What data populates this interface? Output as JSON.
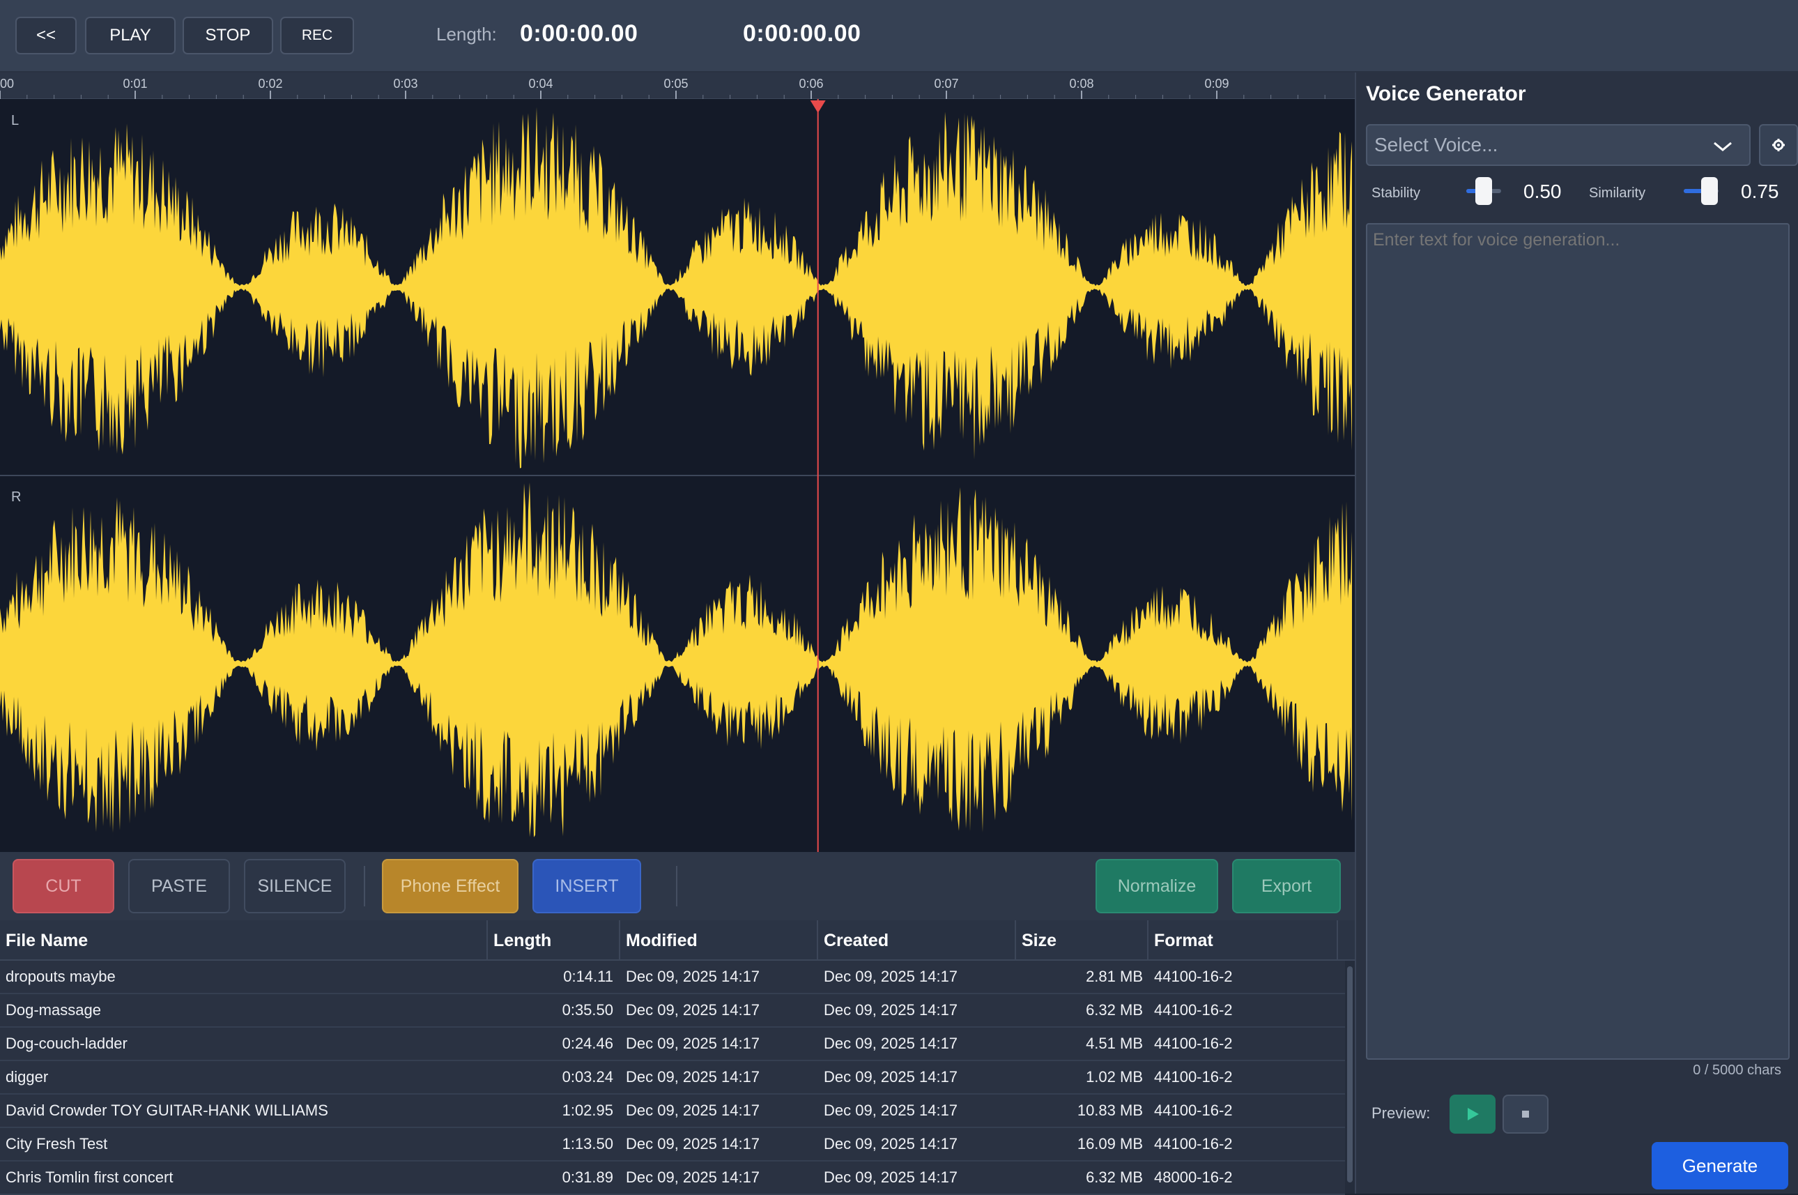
{
  "transport": {
    "rewind_label": "<<",
    "play_label": "PLAY",
    "stop_label": "STOP",
    "rec_label": "REC",
    "length_label": "Length:",
    "length_value": "0:00:00.00",
    "position_value": "0:00:00.00"
  },
  "ruler": {
    "ticks": [
      "00",
      "0:01",
      "0:02",
      "0:03",
      "0:04",
      "0:05",
      "0:06",
      "0:07",
      "0:08",
      "0:09"
    ]
  },
  "waveform": {
    "left_label": "L",
    "right_label": "R",
    "color": "#fcd63b",
    "playhead_color": "#e84b4b",
    "playhead_time_seconds": 6.05
  },
  "edit_toolbar": {
    "cut_label": "CUT",
    "paste_label": "PASTE",
    "silence_label": "SILENCE",
    "phone_label": "Phone Effect",
    "insert_label": "INSERT",
    "normalize_label": "Normalize",
    "export_label": "Export"
  },
  "file_table": {
    "columns": [
      "File Name",
      "Length",
      "Modified",
      "Created",
      "Size",
      "Format"
    ],
    "rows": [
      [
        "dropouts maybe",
        "0:14.11",
        "Dec 09, 2025 14:17",
        "Dec 09, 2025 14:17",
        "2.81 MB",
        "44100-16-2"
      ],
      [
        "Dog-massage",
        "0:35.50",
        "Dec 09, 2025 14:17",
        "Dec 09, 2025 14:17",
        "6.32 MB",
        "44100-16-2"
      ],
      [
        "Dog-couch-ladder",
        "0:24.46",
        "Dec 09, 2025 14:17",
        "Dec 09, 2025 14:17",
        "4.51 MB",
        "44100-16-2"
      ],
      [
        "digger",
        "0:03.24",
        "Dec 09, 2025 14:17",
        "Dec 09, 2025 14:17",
        "1.02 MB",
        "44100-16-2"
      ],
      [
        "David Crowder TOY GUITAR-HANK WILLIAMS",
        "1:02.95",
        "Dec 09, 2025 14:17",
        "Dec 09, 2025 14:17",
        "10.83 MB",
        "44100-16-2"
      ],
      [
        "City Fresh Test",
        "1:13.50",
        "Dec 09, 2025 14:17",
        "Dec 09, 2025 14:17",
        "16.09 MB",
        "44100-16-2"
      ],
      [
        "Chris Tomlin first concert",
        "0:31.89",
        "Dec 09, 2025 14:17",
        "Dec 09, 2025 14:17",
        "6.32 MB",
        "48000-16-2"
      ]
    ]
  },
  "voice_generator": {
    "title": "Voice Generator",
    "select_placeholder": "Select Voice...",
    "settings_icon": "gear-icon",
    "stability_label": "Stability",
    "stability_value": "0.50",
    "similarity_label": "Similarity",
    "similarity_value": "0.75",
    "text_placeholder": "Enter text for voice generation...",
    "char_count": "0 / 5000 chars",
    "preview_label": "Preview:",
    "generate_label": "Generate"
  },
  "colors": {
    "cut": "#b8474f",
    "phone": "#b8862a",
    "insert": "#2b55b8",
    "normalize": "#1f7a63",
    "export": "#1f7a63",
    "generate": "#1d5fe0"
  }
}
